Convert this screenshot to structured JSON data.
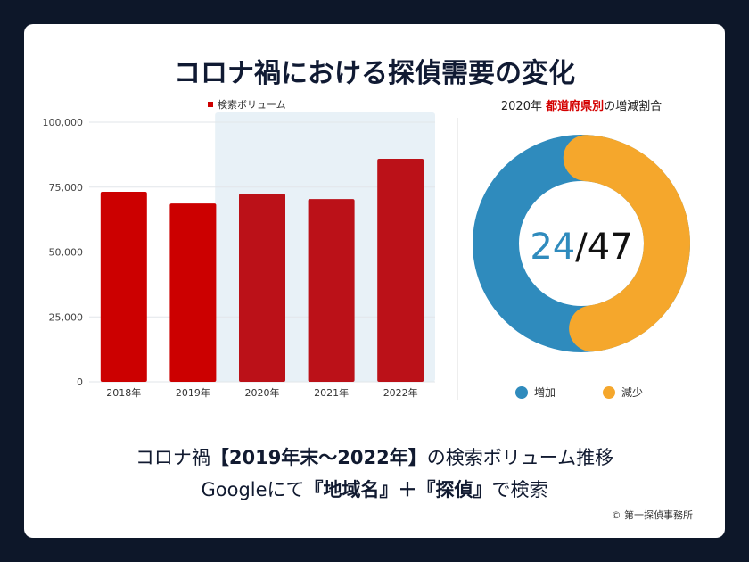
{
  "title": "コロナ禍における探偵需要の変化",
  "chart_data": [
    {
      "type": "bar",
      "title": "",
      "legend": [
        "検索ボリューム"
      ],
      "legend_position": "top",
      "categories": [
        "2018年",
        "2019年",
        "2020年",
        "2021年",
        "2022年"
      ],
      "values": [
        73200,
        68700,
        72500,
        70400,
        85900
      ],
      "ylim": [
        0,
        100000
      ],
      "yticks": [
        0,
        25000,
        50000,
        75000,
        100000
      ],
      "ytick_labels": [
        "0",
        "25,000",
        "50,000",
        "75,000",
        "100,000"
      ],
      "highlight_categories": [
        "2020年",
        "2021年",
        "2022年"
      ],
      "colors": {
        "bar": "#cc0000",
        "bar_highlight": "#bb1118",
        "highlight_bg": "#e8f1f7"
      }
    },
    {
      "type": "pie",
      "title_parts": [
        "2020年 ",
        "都道府県別",
        "の増減割合"
      ],
      "labels": [
        "増加",
        "減少"
      ],
      "values": [
        24,
        23
      ],
      "center_label": {
        "num": "24",
        "den": "/47"
      },
      "colors": [
        "#2f8bbd",
        "#f5a72c"
      ],
      "legend_position": "bottom"
    }
  ],
  "subtitle1": {
    "a": "コロナ禍",
    "b": "【2019年末〜2022年】",
    "c": "の検索ボリューム推移"
  },
  "subtitle2": {
    "a": "Googleにて",
    "b": "『地域名』＋『探偵』",
    "c": "で検索"
  },
  "copyright": "© 第一探偵事務所"
}
